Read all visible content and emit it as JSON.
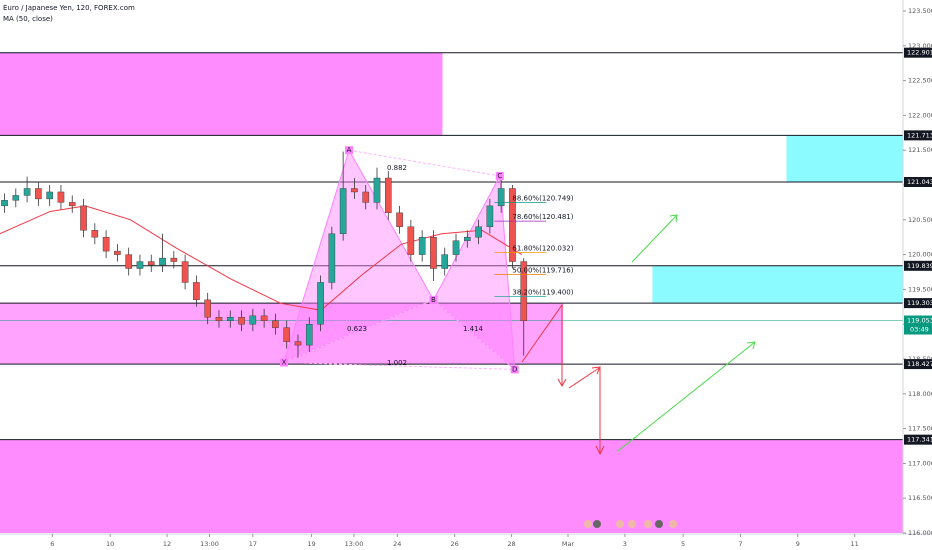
{
  "chart_data": {
    "type": "candlestick",
    "title": "Euro / Japanese Yen, 120, FOREX.com",
    "indicator": "MA (50, close)",
    "up_color": "#26a69a",
    "down_color": "#ef5350",
    "ma_color": "#f23645",
    "xlim": [
      0,
      200
    ],
    "ylim": [
      116,
      123.5
    ],
    "yticks": [
      {
        "value": 116,
        "label": "116.000"
      },
      {
        "value": 116.5,
        "label": "116.500"
      },
      {
        "value": 117,
        "label": "117.000"
      },
      {
        "value": 117.5,
        "label": "117.500"
      },
      {
        "value": 118,
        "label": "118.000"
      },
      {
        "value": 118.5,
        "label": "118.500"
      },
      {
        "value": 119,
        "label": "119.000"
      },
      {
        "value": 119.5,
        "label": "119.500"
      },
      {
        "value": 120,
        "label": "120.000"
      },
      {
        "value": 120.5,
        "label": "120.500"
      },
      {
        "value": 121,
        "label": "121.000"
      },
      {
        "value": 121.5,
        "label": "121.500"
      },
      {
        "value": 122,
        "label": "122.000"
      },
      {
        "value": 122.5,
        "label": "122.500"
      },
      {
        "value": 123,
        "label": "123.000"
      },
      {
        "value": 123.5,
        "label": "123.500"
      }
    ],
    "xticks": [
      {
        "value": 11.6,
        "label": "6"
      },
      {
        "value": 24.4,
        "label": "10"
      },
      {
        "value": 37,
        "label": "12"
      },
      {
        "value": 46.4,
        "label": "13:00"
      },
      {
        "value": 56,
        "label": "17"
      },
      {
        "value": 69,
        "label": "19"
      },
      {
        "value": 78.4,
        "label": "13:00"
      },
      {
        "value": 88,
        "label": "24"
      },
      {
        "value": 100.7,
        "label": "26"
      },
      {
        "value": 113.3,
        "label": "28"
      },
      {
        "value": 125.8,
        "label": "Mar"
      },
      {
        "value": 138.4,
        "label": "3"
      },
      {
        "value": 151.3,
        "label": "5"
      },
      {
        "value": 164,
        "label": "7"
      },
      {
        "value": 176.7,
        "label": "9"
      },
      {
        "value": 189.3,
        "label": "11"
      }
    ],
    "candles": {
      "x": [
        1,
        3.5,
        6,
        8.5,
        11,
        13.5,
        16,
        18.5,
        21,
        23.5,
        26,
        28.5,
        31,
        33.5,
        36,
        38.5,
        41,
        43.5,
        46,
        48.5,
        51,
        53.5,
        56,
        58.5,
        61,
        63.5,
        66,
        68.5,
        71,
        73.5,
        76,
        78.5,
        81,
        83.5,
        86,
        88.5,
        91,
        93.5,
        96,
        98.5,
        101,
        103.5,
        106,
        108.5,
        111,
        113.5,
        116
      ],
      "open": [
        120.7,
        120.78,
        120.85,
        120.95,
        120.8,
        120.9,
        120.75,
        120.7,
        120.35,
        120.25,
        120.05,
        120,
        119.8,
        119.9,
        119.85,
        119.95,
        119.9,
        119.6,
        119.35,
        119.1,
        119.05,
        119.1,
        119,
        119.12,
        119.05,
        118.95,
        118.75,
        118.7,
        119,
        119.6,
        120.3,
        120.95,
        120.9,
        120.75,
        121.1,
        120.6,
        120.4,
        120,
        120.25,
        119.8,
        120,
        120.2,
        120.25,
        120.4,
        120.7,
        120.95,
        119.9
      ],
      "high": [
        120.88,
        120.95,
        121.12,
        121.05,
        121,
        121,
        120.85,
        120.8,
        120.45,
        120.35,
        120.15,
        120.1,
        120,
        120,
        120.3,
        120.05,
        120,
        119.7,
        119.45,
        119.2,
        119.2,
        119.2,
        119.22,
        119.22,
        119.15,
        119.05,
        118.85,
        119.1,
        119.7,
        120.4,
        121.48,
        121.1,
        121,
        121.25,
        121.2,
        120.7,
        120.5,
        120.35,
        120.35,
        120.1,
        120.3,
        120.35,
        120.5,
        120.8,
        121.13,
        121,
        119.95
      ],
      "low": [
        120.6,
        120.68,
        120.75,
        120.7,
        120.7,
        120.65,
        120.6,
        120.25,
        120.15,
        119.95,
        119.9,
        119.7,
        119.7,
        119.75,
        119.75,
        119.8,
        119.5,
        119.25,
        119,
        118.95,
        118.95,
        118.9,
        118.9,
        118.95,
        118.85,
        118.65,
        118.52,
        118.6,
        118.9,
        119.5,
        120.2,
        120.8,
        120.65,
        120.65,
        120.5,
        120.3,
        119.9,
        119.9,
        119.62,
        119.7,
        119.9,
        120.1,
        120.15,
        120.3,
        120.6,
        119.8,
        118.55
      ],
      "close": [
        120.78,
        120.85,
        120.95,
        120.8,
        120.9,
        120.75,
        120.7,
        120.35,
        120.25,
        120.05,
        120,
        119.8,
        119.9,
        119.85,
        119.95,
        119.9,
        119.6,
        119.35,
        119.1,
        119.05,
        119.1,
        119,
        119.12,
        119.05,
        118.95,
        118.75,
        118.7,
        119,
        119.6,
        120.3,
        120.95,
        120.9,
        120.75,
        121.1,
        120.6,
        120.4,
        120,
        120.25,
        119.8,
        120,
        120.2,
        120.25,
        120.4,
        120.7,
        120.95,
        119.9,
        119.05
      ]
    },
    "ma": {
      "x": [
        0,
        11.1,
        18.9,
        28.9,
        38.9,
        51.1,
        62.2,
        71.1,
        80,
        88.9,
        97.8,
        106.7,
        115.6
      ],
      "values": [
        120.3,
        120.62,
        120.7,
        120.5,
        120.1,
        119.65,
        119.3,
        119.2,
        119.7,
        120.15,
        120.3,
        120.35,
        120
      ]
    },
    "levels": [
      122.901,
      121.713,
      121.043,
      119.839,
      119.303,
      118.427,
      117.341
    ],
    "current": {
      "value": 119.053,
      "countdown": "03:49",
      "color": "#089981"
    },
    "zones": [
      {
        "x": [
          0,
          98
        ],
        "y": [
          121.713,
          122.901
        ],
        "color": "#ff80ff"
      },
      {
        "x": [
          0,
          200
        ],
        "y": [
          116,
          117.341
        ],
        "color": "#ff80ff"
      },
      {
        "x": [
          0,
          124.7
        ],
        "y": [
          118.427,
          119.303
        ],
        "color": "#ff99ff"
      },
      {
        "x": [
          174.2,
          200
        ],
        "y": [
          121.043,
          121.713
        ],
        "color": "#7ffbff"
      },
      {
        "x": [
          144.5,
          200
        ],
        "y": [
          119.303,
          119.839
        ],
        "color": "#7ffbff"
      }
    ],
    "fib": {
      "x": [
        109.5,
        121
      ],
      "levels": [
        {
          "value": 120.749,
          "label": "88.60%(120.749)",
          "color": "#089981"
        },
        {
          "value": 120.481,
          "label": "78.60%(120.481)",
          "color": "#9c27b0"
        },
        {
          "value": 120.032,
          "label": "61.80%(120.032)",
          "color": "#ff9800"
        },
        {
          "value": 119.716,
          "label": "50.00%(119.716)",
          "color": "#f57c00"
        },
        {
          "value": 119.4,
          "label": "38.20%(119.400)",
          "color": "#26a69a"
        }
      ]
    },
    "pattern": {
      "points": [
        {
          "label": "X",
          "x": 62.9,
          "y": 118.45
        },
        {
          "label": "A",
          "x": 77.3,
          "y": 121.5
        },
        {
          "label": "B",
          "x": 96,
          "y": 119.35
        },
        {
          "label": "C",
          "x": 110.7,
          "y": 121.13
        },
        {
          "label": "D",
          "x": 114,
          "y": 118.35
        }
      ],
      "ratios": [
        "0.882",
        "0.623",
        "1.414",
        "1.002"
      ]
    }
  }
}
